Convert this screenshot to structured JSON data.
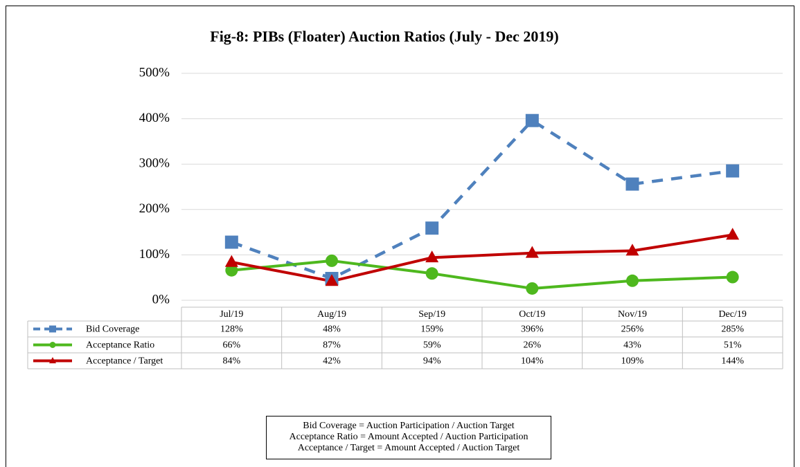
{
  "chart_data": {
    "type": "line",
    "title": "Fig-8: PIBs (Floater) Auction Ratios (July - Dec 2019)",
    "categories": [
      "Jul/19",
      "Aug/19",
      "Sep/19",
      "Oct/19",
      "Nov/19",
      "Dec/19"
    ],
    "series": [
      {
        "name": "Bid Coverage",
        "color": "#4f81bd",
        "marker": "square",
        "dashed": true,
        "values": [
          128,
          48,
          159,
          396,
          256,
          285
        ],
        "value_labels": [
          "128%",
          "48%",
          "159%",
          "396%",
          "256%",
          "285%"
        ]
      },
      {
        "name": "Acceptance Ratio",
        "color": "#4eb81e",
        "marker": "circle",
        "dashed": false,
        "values": [
          66,
          87,
          59,
          26,
          43,
          51
        ],
        "value_labels": [
          "66%",
          "87%",
          "59%",
          "26%",
          "43%",
          "51%"
        ]
      },
      {
        "name": "Acceptance / Target",
        "color": "#c00000",
        "marker": "triangle",
        "dashed": false,
        "values": [
          84,
          42,
          94,
          104,
          109,
          144
        ],
        "value_labels": [
          "84%",
          "42%",
          "94%",
          "104%",
          "109%",
          "144%"
        ]
      }
    ],
    "ylim": [
      0,
      500
    ],
    "yticks": [
      {
        "value": 0,
        "label": "0%"
      },
      {
        "value": 100,
        "label": "100%"
      },
      {
        "value": 200,
        "label": "200%"
      },
      {
        "value": 300,
        "label": "300%"
      },
      {
        "value": 400,
        "label": "400%"
      },
      {
        "value": 500,
        "label": "500%"
      }
    ],
    "grid": true,
    "notes": [
      "Bid Coverage = Auction Participation / Auction Target",
      "Acceptance Ratio = Amount Accepted / Auction Participation",
      "Acceptance / Target = Amount Accepted / Auction Target"
    ]
  }
}
